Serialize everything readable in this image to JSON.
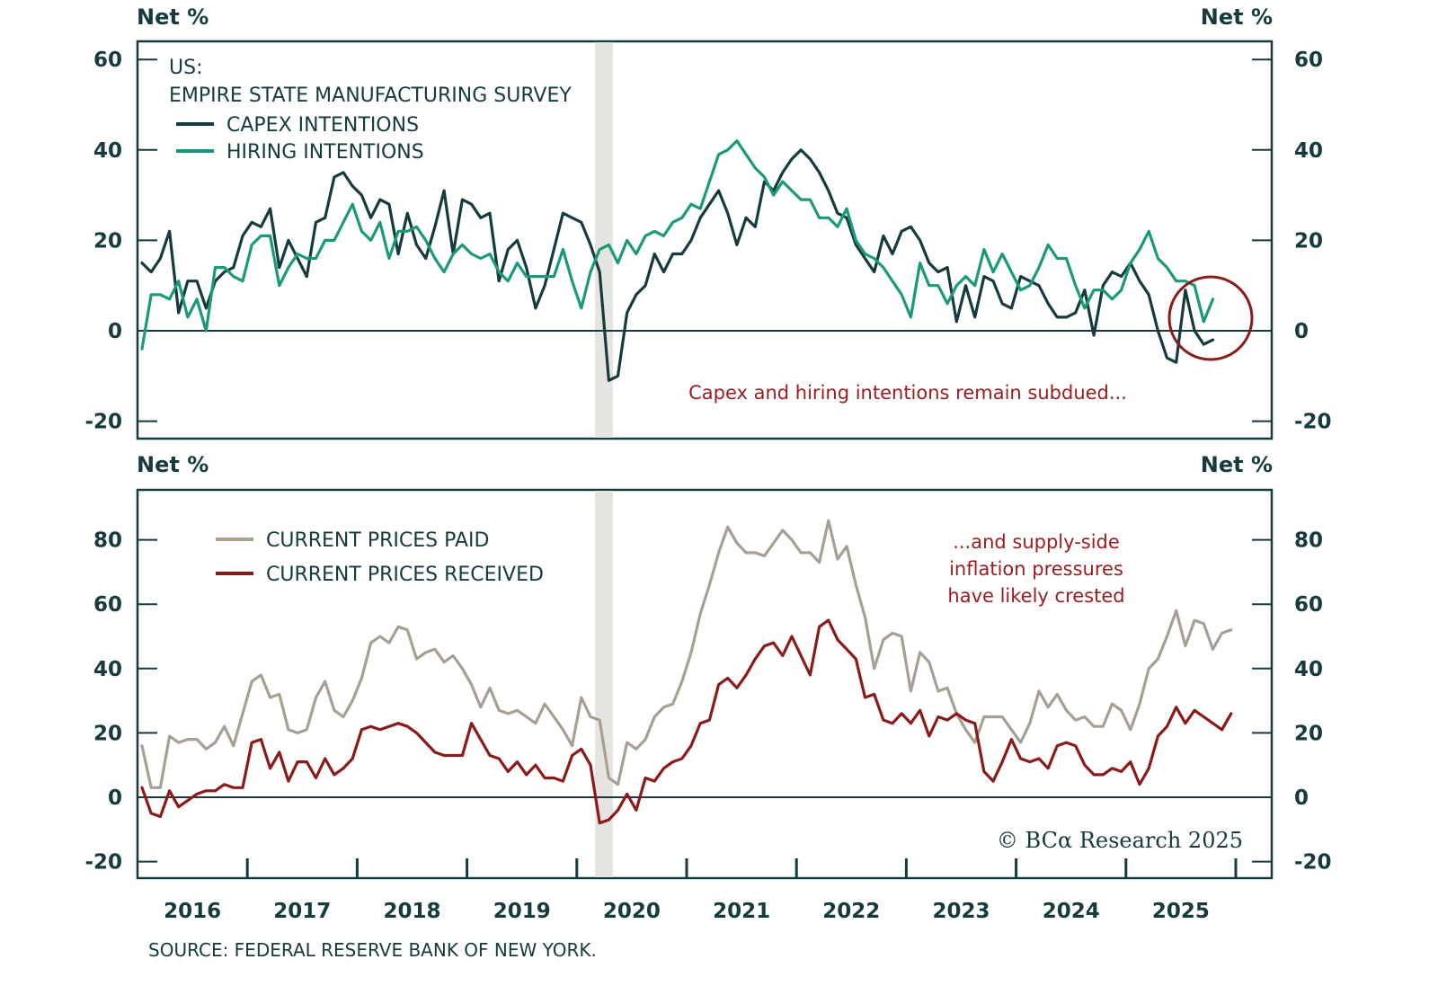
{
  "source": "SOURCE: FEDERAL RESERVE BANK OF NEW YORK.",
  "brand": "© BCα Research 2025",
  "chart_data": [
    {
      "type": "line",
      "title": "US: EMPIRE STATE MANUFACTURING SURVEY",
      "title_line1": "US:",
      "title_line2": "EMPIRE STATE MANUFACTURING SURVEY",
      "ylabel_left": "Net %",
      "ylabel_right": "Net %",
      "ylim": [
        -25,
        64
      ],
      "yticks": [
        -20,
        0,
        20,
        40,
        60
      ],
      "annotation": "Capex and hiring intentions remain subdued...",
      "highlight_circle": "late 2025",
      "x_start": "2016-01",
      "frequency": "monthly",
      "series": [
        {
          "name": "CAPEX INTENTIONS",
          "color": "#163b3e",
          "values": [
            15,
            13,
            16,
            22,
            4,
            11,
            11,
            5,
            11,
            13,
            14,
            21,
            24,
            23,
            27,
            14,
            20,
            16,
            12,
            24,
            25,
            34,
            35,
            32,
            30,
            25,
            29,
            28,
            17,
            26,
            19,
            16,
            23,
            31,
            17,
            29,
            28,
            25,
            26,
            11,
            18,
            20,
            14,
            5,
            10,
            18,
            26,
            25,
            24,
            19,
            13,
            -11,
            -10,
            4,
            8,
            10,
            17,
            13,
            17,
            17,
            20,
            25,
            28,
            31,
            26,
            19,
            25,
            23,
            33,
            31,
            35,
            38,
            40,
            38,
            35,
            31,
            26,
            25,
            19,
            16,
            13,
            21,
            17,
            22,
            23,
            20,
            15,
            13,
            14,
            2,
            10,
            3,
            12,
            11,
            6,
            5,
            12,
            11,
            10,
            6,
            3,
            3,
            4,
            9,
            -1,
            10,
            13,
            12,
            15,
            11,
            8,
            0,
            -6,
            -7,
            9,
            0,
            -3,
            -2
          ]
        },
        {
          "name": "HIRING INTENTIONS",
          "color": "#1a9a78",
          "values": [
            -4,
            8,
            8,
            7,
            11,
            3,
            7,
            0,
            14,
            14,
            12,
            11,
            19,
            21,
            21,
            10,
            14,
            17,
            16,
            16,
            20,
            20,
            24,
            28,
            22,
            20,
            24,
            16,
            22,
            22,
            23,
            20,
            16,
            13,
            17,
            19,
            17,
            16,
            17,
            13,
            11,
            15,
            12,
            12,
            12,
            12,
            18,
            11,
            5,
            13,
            18,
            19,
            15,
            20,
            17,
            21,
            22,
            21,
            24,
            25,
            28,
            27,
            33,
            39,
            40,
            42,
            39,
            36,
            34,
            30,
            33,
            31,
            29,
            29,
            25,
            25,
            23,
            27,
            20,
            17,
            16,
            14,
            11,
            8,
            3,
            15,
            10,
            10,
            6,
            10,
            12,
            10,
            18,
            13,
            17,
            13,
            9,
            10,
            14,
            19,
            16,
            16,
            10,
            5,
            9,
            9,
            7,
            9,
            15,
            18,
            22,
            16,
            14,
            11,
            11,
            10,
            2,
            7
          ]
        }
      ]
    },
    {
      "type": "line",
      "title": "",
      "ylabel_left": "Net %",
      "ylabel_right": "Net %",
      "ylim": [
        -22,
        96
      ],
      "yticks": [
        -20,
        0,
        20,
        40,
        60,
        80
      ],
      "annotation": [
        "...and supply-side",
        "inflation pressures",
        "have likely crested"
      ],
      "x_start": "2016-01",
      "frequency": "monthly",
      "xticks": [
        "2016",
        "2017",
        "2018",
        "2019",
        "2020",
        "2021",
        "2022",
        "2023",
        "2024",
        "2025"
      ],
      "recession_shading": [
        "2020-02",
        "2020-04"
      ],
      "series": [
        {
          "name": "CURRENT PRICES PAID",
          "color": "#a89f93",
          "values": [
            16,
            3,
            3,
            19,
            17,
            18,
            18,
            15,
            17,
            22,
            16,
            26,
            36,
            38,
            31,
            32,
            21,
            20,
            21,
            31,
            36,
            27,
            25,
            30,
            37,
            48,
            50,
            48,
            53,
            52,
            43,
            45,
            46,
            42,
            44,
            40,
            35,
            28,
            34,
            27,
            26,
            27,
            25,
            23,
            29,
            25,
            21,
            16,
            31,
            25,
            24,
            6,
            4,
            17,
            15,
            18,
            25,
            28,
            29,
            36,
            45,
            57,
            66,
            76,
            84,
            79,
            76,
            76,
            75,
            79,
            83,
            80,
            76,
            76,
            73,
            86,
            74,
            78,
            66,
            56,
            40,
            49,
            51,
            50,
            33,
            45,
            42,
            33,
            34,
            26,
            21,
            17,
            25,
            25,
            25,
            21,
            17,
            23,
            33,
            28,
            32,
            27,
            24,
            25,
            22,
            22,
            29,
            27,
            21,
            29,
            40,
            43,
            50,
            58,
            47,
            55,
            54,
            46,
            51,
            52
          ]
        },
        {
          "name": "CURRENT PRICES RECEIVED",
          "color": "#8b1a1a",
          "values": [
            3,
            -5,
            -6,
            2,
            -3,
            -1,
            1,
            2,
            2,
            4,
            3,
            3,
            17,
            18,
            9,
            14,
            5,
            11,
            11,
            6,
            12,
            7,
            9,
            12,
            21,
            22,
            21,
            22,
            23,
            22,
            20,
            17,
            14,
            13,
            13,
            13,
            23,
            18,
            13,
            12,
            8,
            11,
            7,
            10,
            6,
            6,
            5,
            13,
            15,
            10,
            -8,
            -7,
            -4,
            1,
            -4,
            6,
            5,
            9,
            11,
            12,
            16,
            23,
            24,
            35,
            37,
            34,
            38,
            43,
            47,
            48,
            44,
            50,
            44,
            38,
            53,
            55,
            49,
            46,
            43,
            31,
            32,
            24,
            23,
            26,
            23,
            27,
            19,
            25,
            24,
            26,
            24,
            23,
            8,
            5,
            11,
            18,
            12,
            11,
            12,
            9,
            16,
            17,
            16,
            10,
            7,
            7,
            9,
            8,
            11,
            4,
            9,
            19,
            22,
            28,
            23,
            27,
            25,
            23,
            21,
            26
          ]
        }
      ]
    }
  ]
}
